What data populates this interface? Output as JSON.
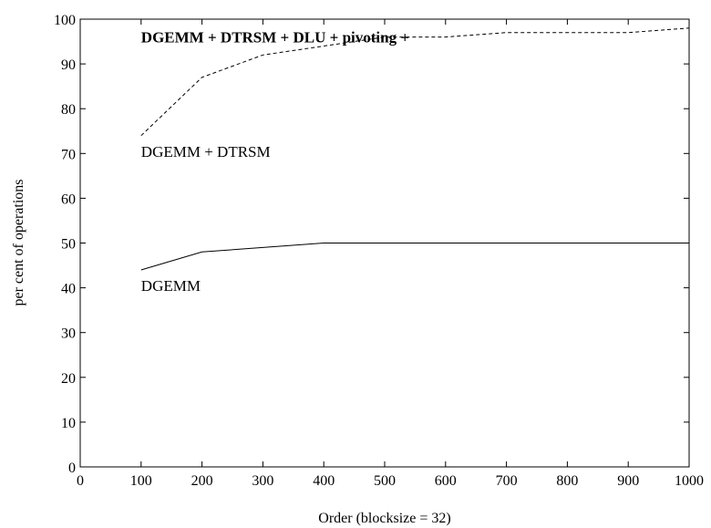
{
  "chart_data": {
    "type": "line",
    "title": "",
    "xlabel": "Order (blocksize = 32)",
    "ylabel": "per cent of operations",
    "xlim": [
      0,
      1000
    ],
    "ylim": [
      0,
      100
    ],
    "xticks": [
      0,
      100,
      200,
      300,
      400,
      500,
      600,
      700,
      800,
      900,
      1000
    ],
    "yticks": [
      0,
      10,
      20,
      30,
      40,
      50,
      60,
      70,
      80,
      90,
      100
    ],
    "grid": false,
    "series": [
      {
        "name": "DGEMM",
        "style": "solid",
        "color": "#000000",
        "x": [
          100,
          200,
          300,
          400,
          500,
          600,
          700,
          800,
          900,
          1000
        ],
        "y": [
          44,
          48,
          49,
          50,
          50,
          50,
          50,
          50,
          50,
          50
        ]
      },
      {
        "name": "DGEMM + DTRSM",
        "style": "dashed",
        "color": "#000000",
        "x": [
          100,
          200,
          300,
          400,
          500,
          600,
          700,
          800,
          900,
          1000
        ],
        "y": [
          74,
          87,
          92,
          94,
          96,
          96,
          97,
          97,
          97,
          98
        ]
      }
    ],
    "annotations": [
      {
        "text": "DGEMM + DTRSM + DLU + pivoting +",
        "x": 100,
        "y": 96,
        "weight": "bold"
      },
      {
        "text": "DGEMM + DTRSM",
        "x": 100,
        "y": 70.5,
        "weight": "normal"
      },
      {
        "text": "DGEMM",
        "x": 100,
        "y": 40.5,
        "weight": "normal"
      }
    ]
  }
}
